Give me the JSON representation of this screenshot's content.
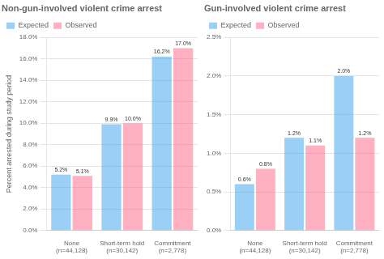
{
  "chart_data": [
    {
      "type": "bar",
      "title": "Non-gun-involved violent crime arrest",
      "ylabel": "Percent arrested during study period",
      "categories": [
        "None\n(n=44,128)",
        "Short-term hold\n(n=30,142)",
        "Commitment\n(n=2,778)"
      ],
      "series": [
        {
          "name": "Expected",
          "values": [
            5.2,
            9.9,
            16.2
          ],
          "value_labels": [
            "5.2%",
            "9.9%",
            "16.2%"
          ]
        },
        {
          "name": "Observed",
          "values": [
            5.1,
            10.0,
            17.0
          ],
          "value_labels": [
            "5.1%",
            "10.0%",
            "17.0%"
          ]
        }
      ],
      "ylim": [
        0,
        18.0
      ],
      "yticks": [
        {
          "value": 0,
          "label": "0.0%"
        },
        {
          "value": 2.0,
          "label": "2.0%"
        },
        {
          "value": 4.0,
          "label": "4.0%"
        },
        {
          "value": 6.0,
          "label": "6.0%"
        },
        {
          "value": 8.0,
          "label": "8.0%"
        },
        {
          "value": 10.0,
          "label": "10.0%"
        },
        {
          "value": 12.0,
          "label": "12.0%"
        },
        {
          "value": 14.0,
          "label": "14.0%"
        },
        {
          "value": 16.0,
          "label": "16.0%"
        },
        {
          "value": 18.0,
          "label": "18.0%"
        }
      ],
      "grid": true,
      "legend": "upper left",
      "data_labels": true
    },
    {
      "type": "bar",
      "title": "Gun-involved violent crime arrest",
      "categories": [
        "None\n(n=44,128)",
        "Short-term hold\n(n=30,142)",
        "Commitment\n(n=2,778)"
      ],
      "series": [
        {
          "name": "Expected",
          "values": [
            0.6,
            1.2,
            2.0
          ],
          "value_labels": [
            "0.6%",
            "1.2%",
            "2.0%"
          ]
        },
        {
          "name": "Observed",
          "values": [
            0.8,
            1.1,
            1.2
          ],
          "value_labels": [
            "0.8%",
            "1.1%",
            "1.2%"
          ]
        }
      ],
      "ylim": [
        0,
        2.5
      ],
      "yticks": [
        {
          "value": 0,
          "label": "0.0%"
        },
        {
          "value": 0.5,
          "label": "0.5%"
        },
        {
          "value": 1.0,
          "label": "1.0%"
        },
        {
          "value": 1.5,
          "label": "1.5%"
        },
        {
          "value": 2.0,
          "label": "2.0%"
        },
        {
          "value": 2.5,
          "label": "2.5%"
        }
      ],
      "grid": true,
      "legend": "upper left",
      "data_labels": true
    }
  ]
}
